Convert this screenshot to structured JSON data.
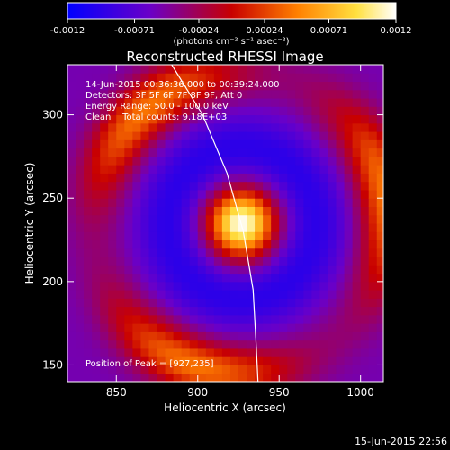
{
  "chart_data": {
    "type": "heatmap",
    "title": "Reconstructed RHESSI Image",
    "xlabel": "Heliocentric X (arcsec)",
    "ylabel": "Heliocentric Y (arcsec)",
    "xlim": [
      820,
      1014
    ],
    "ylim": [
      140,
      330
    ],
    "x_ticks": [
      "850",
      "900",
      "950",
      "1000"
    ],
    "x_tick_values": [
      850,
      900,
      950,
      1000
    ],
    "y_ticks": [
      "150",
      "200",
      "250",
      "300"
    ],
    "y_tick_values": [
      150,
      200,
      250,
      300
    ],
    "colorbar": {
      "ticks": [
        "-0.0012",
        "-0.00071",
        "-0.00024",
        "0.00024",
        "0.00071",
        "0.0012"
      ],
      "tick_values": [
        -0.0012,
        -0.00071,
        -0.00024,
        0.00024,
        0.00071,
        0.0012
      ],
      "range": [
        -0.0012,
        0.0012
      ],
      "unit_label": "(photons cm⁻² s⁻¹ asec⁻²)",
      "colormap": [
        "#0000ff",
        "#6a00c8",
        "#c80000",
        "#ff8000",
        "#ffe040",
        "#ffffff"
      ]
    },
    "peak": {
      "x": 927,
      "y": 235
    },
    "limb_color": "#ffffff",
    "annotations": {
      "time": "14-Jun-2015 00:36:36.000 to 00:39:24.000",
      "detectors": "Detectors: 3F 5F 6F 7F 8F 9F, Att 0",
      "energy": "Energy Range: 50.0 - 100.0 keV",
      "clean": "Clean    Total counts: 9.18E+03",
      "peak_text": "Position of Peak = [927,235]"
    },
    "footer_date": "15-Jun-2015 22:56"
  }
}
